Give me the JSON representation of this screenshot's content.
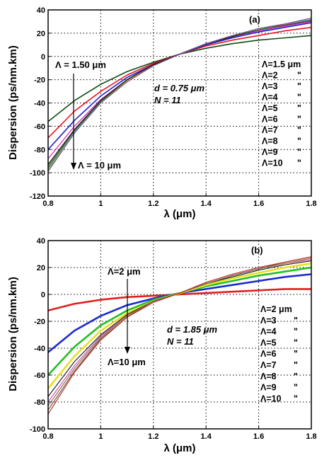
{
  "chart_data": [
    {
      "type": "line",
      "panel_label": "(a)",
      "xlabel": "λ (μm)",
      "ylabel": "Dispersion (ps/nm.km)",
      "xlim": [
        0.8,
        1.8
      ],
      "ylim": [
        -120,
        40
      ],
      "x_ticks": [
        "0.8",
        "1",
        "1.2",
        "1.4",
        "1.6",
        "1.8"
      ],
      "y_ticks": [
        "-120",
        "-100",
        "-80",
        "-60",
        "-40",
        "-20",
        "0",
        "20",
        "40"
      ],
      "grid": true,
      "legend_position": "right",
      "annotations": {
        "arrow_top": "Λ =  1.50 μm",
        "arrow_bottom": "Λ = 10 μm",
        "param_d": "d = 0.75 μm",
        "param_n": "N = 11"
      },
      "legend": [
        {
          "label": "Λ=1.5 μm",
          "suffix": ""
        },
        {
          "label": "Λ=2",
          "suffix": "\""
        },
        {
          "label": "Λ=3",
          "suffix": "\""
        },
        {
          "label": "Λ=4",
          "suffix": "\""
        },
        {
          "label": "Λ=5",
          "suffix": "\""
        },
        {
          "label": "Λ=6",
          "suffix": "\""
        },
        {
          "label": "Λ=7",
          "suffix": "\""
        },
        {
          "label": "Λ=8",
          "suffix": "\""
        },
        {
          "label": "Λ=9",
          "suffix": "\""
        },
        {
          "label": "Λ=10",
          "suffix": "\""
        }
      ],
      "x": [
        0.8,
        0.9,
        1.0,
        1.1,
        1.2,
        1.3,
        1.4,
        1.5,
        1.6,
        1.7,
        1.8
      ],
      "series": [
        {
          "color": "#0c4a12",
          "width": 1.6,
          "values": [
            -56,
            -38,
            -24,
            -13,
            -5,
            2,
            7,
            11,
            14,
            16,
            18
          ]
        },
        {
          "color": "#e8121f",
          "width": 1.6,
          "values": [
            -70,
            -47,
            -30,
            -16,
            -6,
            2,
            9,
            14,
            18,
            22,
            25
          ]
        },
        {
          "color": "#2220d0",
          "width": 1.6,
          "values": [
            -80,
            -55,
            -34,
            -18,
            -7,
            2,
            10,
            16,
            21,
            25,
            29
          ]
        },
        {
          "color": "#d020c0",
          "width": 1.2,
          "values": [
            -88,
            -60,
            -37,
            -20,
            -7,
            2,
            11,
            17,
            22,
            26,
            30
          ]
        },
        {
          "color": "#222222",
          "width": 1.6,
          "values": [
            -93,
            -63,
            -38,
            -20,
            -7,
            2,
            11,
            17,
            23,
            27,
            31
          ]
        },
        {
          "color": "#7a4a20",
          "width": 1.0,
          "values": [
            -95,
            -64,
            -39,
            -21,
            -8,
            2,
            11,
            18,
            23,
            27,
            31
          ]
        },
        {
          "color": "#20a030",
          "width": 1.0,
          "values": [
            -96,
            -65,
            -39,
            -21,
            -8,
            2,
            11,
            18,
            23,
            28,
            32
          ]
        },
        {
          "color": "#30c0c0",
          "width": 1.0,
          "values": [
            -97,
            -65,
            -40,
            -21,
            -8,
            2,
            11,
            18,
            24,
            28,
            32
          ]
        },
        {
          "color": "#c8a020",
          "width": 1.0,
          "values": [
            -98,
            -66,
            -40,
            -21,
            -8,
            2,
            11,
            18,
            24,
            28,
            33
          ]
        },
        {
          "color": "#8040a0",
          "width": 1.0,
          "values": [
            -99,
            -66,
            -40,
            -22,
            -8,
            2,
            11,
            18,
            24,
            28,
            33
          ]
        }
      ]
    },
    {
      "type": "line",
      "panel_label": "(b)",
      "xlabel": "λ (μm)",
      "ylabel": "Dispersion (ps/nm.km)",
      "xlim": [
        0.8,
        1.8
      ],
      "ylim": [
        -100,
        40
      ],
      "x_ticks": [
        "0.8",
        "1",
        "1.2",
        "1.4",
        "1.6",
        "1.8"
      ],
      "y_ticks": [
        "-100",
        "-80",
        "-60",
        "-40",
        "-20",
        "0",
        "20",
        "40"
      ],
      "grid": true,
      "legend_position": "right",
      "annotations": {
        "arrow_top": "Λ=2 μm",
        "arrow_bottom": "Λ=10 μm",
        "param_d": "d = 1.85 μm",
        "param_n": "N = 11"
      },
      "legend": [
        {
          "label": "Λ=2 μm",
          "suffix": ""
        },
        {
          "label": "Λ=3",
          "suffix": "\""
        },
        {
          "label": "Λ=4",
          "suffix": "\""
        },
        {
          "label": "Λ=5",
          "suffix": "\""
        },
        {
          "label": "Λ=6",
          "suffix": "\""
        },
        {
          "label": "Λ=7",
          "suffix": "\""
        },
        {
          "label": "Λ=8",
          "suffix": "\""
        },
        {
          "label": "Λ=9",
          "suffix": "\""
        },
        {
          "label": "Λ=10",
          "suffix": "\""
        }
      ],
      "x": [
        0.8,
        0.9,
        1.0,
        1.1,
        1.2,
        1.3,
        1.4,
        1.5,
        1.6,
        1.7,
        1.8
      ],
      "series": [
        {
          "color": "#e02020",
          "width": 2.6,
          "values": [
            -12,
            -7,
            -4,
            -2,
            -1,
            0,
            1,
            2,
            3,
            4,
            4
          ]
        },
        {
          "color": "#1a2ad0",
          "width": 2.6,
          "values": [
            -43,
            -27,
            -16,
            -8,
            -3,
            1,
            4,
            7,
            10,
            13,
            15
          ]
        },
        {
          "color": "#22c020",
          "width": 2.6,
          "values": [
            -60,
            -39,
            -23,
            -12,
            -4,
            1,
            6,
            10,
            14,
            17,
            20
          ]
        },
        {
          "color": "#e8e020",
          "width": 2.6,
          "values": [
            -70,
            -46,
            -27,
            -14,
            -5,
            1,
            7,
            12,
            16,
            20,
            23
          ]
        },
        {
          "color": "#202020",
          "width": 1.2,
          "values": [
            -76,
            -50,
            -30,
            -15,
            -5,
            1,
            8,
            13,
            18,
            22,
            25
          ]
        },
        {
          "color": "#d050c0",
          "width": 1.2,
          "values": [
            -80,
            -53,
            -31,
            -16,
            -5,
            1,
            8,
            14,
            19,
            23,
            26
          ]
        },
        {
          "color": "#a07040",
          "width": 1.2,
          "values": [
            -83,
            -55,
            -32,
            -16,
            -5,
            1,
            8,
            14,
            19,
            23,
            27
          ]
        },
        {
          "color": "#606060",
          "width": 1.2,
          "values": [
            -86,
            -57,
            -33,
            -17,
            -5,
            1,
            8,
            14,
            19,
            24,
            28
          ]
        },
        {
          "color": "#c03020",
          "width": 1.2,
          "values": [
            -89,
            -58,
            -34,
            -17,
            -6,
            1,
            9,
            15,
            20,
            24,
            28
          ]
        }
      ]
    }
  ]
}
